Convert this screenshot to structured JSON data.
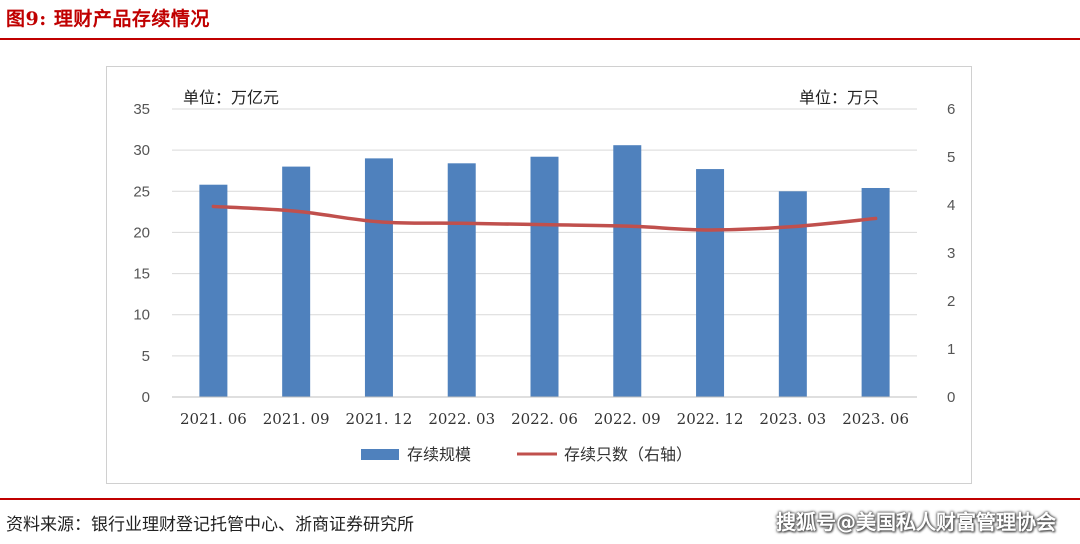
{
  "figure": {
    "title": "图9:  理财产品存续情况",
    "source": "资料来源：银行业理财登记托管中心、浙商证券研究所",
    "watermark": "搜狐号@美国私人财富管理协会"
  },
  "colors": {
    "bar": "#4f81bd",
    "line": "#c0504d",
    "rule": "#c00000",
    "grid": "#d9d9d9"
  },
  "chart_data": {
    "type": "bar",
    "categories": [
      "2021. 06",
      "2021. 09",
      "2021. 12",
      "2022. 03",
      "2022. 06",
      "2022. 09",
      "2022. 12",
      "2023. 03",
      "2023. 06"
    ],
    "series": [
      {
        "name": "存续规模",
        "type": "bar",
        "axis": "left",
        "values": [
          25.8,
          28.0,
          29.0,
          28.4,
          29.2,
          30.6,
          27.7,
          25.0,
          25.4
        ]
      },
      {
        "name": "存续只数（右轴）",
        "type": "line",
        "axis": "right",
        "values": [
          3.97,
          3.87,
          3.65,
          3.62,
          3.59,
          3.56,
          3.48,
          3.55,
          3.72
        ]
      }
    ],
    "left_axis": {
      "unit_label": "单位：万亿元",
      "ylim": [
        0,
        35
      ],
      "ticks": [
        "0",
        "5",
        "10",
        "15",
        "20",
        "25",
        "30",
        "35"
      ]
    },
    "right_axis": {
      "unit_label": "单位：万只",
      "ylim": [
        0,
        6
      ],
      "ticks": [
        "0",
        "1",
        "2",
        "3",
        "4",
        "5",
        "6"
      ]
    },
    "grid": true,
    "legend": {
      "position": "bottom",
      "entries": [
        "存续规模",
        "存续只数（右轴）"
      ]
    }
  }
}
